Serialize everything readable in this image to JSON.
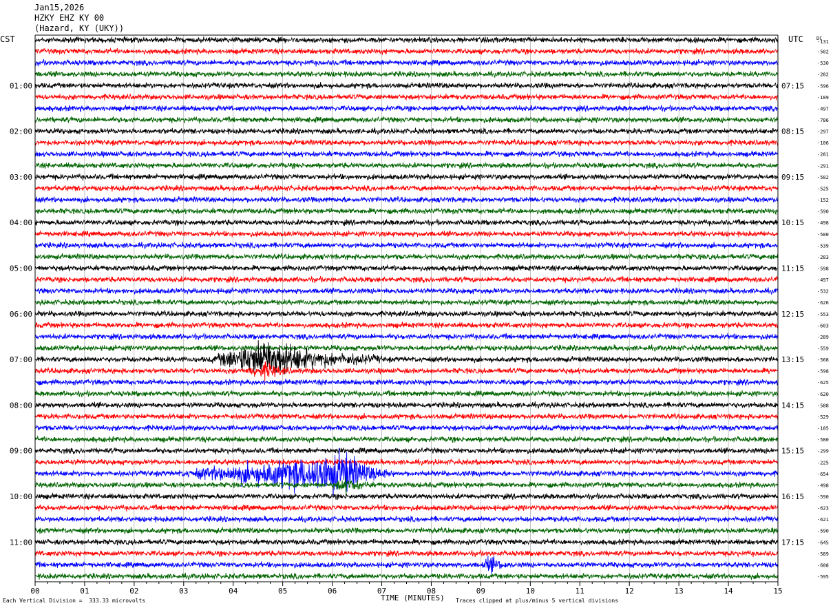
{
  "header": {
    "date": "Jan15,2026",
    "station": "HZKY EHZ KY 00",
    "location": "(Hazard, KY (UKY))"
  },
  "left_timezone": "CST",
  "right_timezone": "UTC",
  "dc_header": "DC",
  "footer": {
    "scale_note": "Each Vertical Division =  333.33 microvolts",
    "xlabel": "TIME (MINUTES)",
    "clip_note": "Traces clipped at plus/minus 5 vertical divisions"
  },
  "chart_data": {
    "type": "line",
    "title": "HZKY EHZ KY 00",
    "xlabel": "TIME (MINUTES)",
    "xlim": [
      0,
      15
    ],
    "x_ticks": [
      "00",
      "01",
      "02",
      "03",
      "04",
      "05",
      "06",
      "07",
      "08",
      "09",
      "10",
      "11",
      "12",
      "13",
      "14",
      "15"
    ],
    "trace_colors": [
      "#000000",
      "#ff0000",
      "#0000ff",
      "#006400"
    ],
    "trace_count": 48,
    "left_hour_labels": [
      "01:00",
      "02:00",
      "03:00",
      "04:00",
      "05:00",
      "06:00",
      "07:00",
      "08:00",
      "09:00",
      "10:00",
      "11:00"
    ],
    "right_hour_labels": [
      "07:15",
      "08:15",
      "09:15",
      "10:15",
      "11:15",
      "12:15",
      "13:15",
      "14:15",
      "15:15",
      "16:15",
      "17:15"
    ],
    "dc_offsets": [
      "-131",
      "-502",
      "-530",
      "-282",
      "-596",
      "-189",
      "-497",
      "-786",
      "-297",
      "-106",
      "-281",
      "-291",
      "-502",
      "-525",
      "-152",
      "-590",
      "-498",
      "-500",
      "-539",
      "-283",
      "-598",
      "-497",
      "-532",
      "-626",
      "-553",
      "-603",
      "-289",
      "-559",
      "-568",
      "-598",
      "-625",
      "-620",
      "-588",
      "-529",
      "-185",
      "-580",
      "-299",
      "-225",
      "-654",
      "-498",
      "-590",
      "-623",
      "-621",
      "-590",
      "-645",
      "-589",
      "-608",
      "-595"
    ],
    "events": [
      {
        "trace": 28,
        "start_min": 3.5,
        "peak_min": 4.7,
        "end_min": 7.0,
        "amplitude": "large"
      },
      {
        "trace": 29,
        "start_min": 4.2,
        "peak_min": 4.7,
        "end_min": 5.2,
        "amplitude": "small"
      },
      {
        "trace": 38,
        "start_min": 2.8,
        "peak_min": 6.3,
        "end_min": 7.2,
        "amplitude": "large"
      },
      {
        "trace": 39,
        "start_min": 6.0,
        "peak_min": 6.3,
        "end_min": 6.8,
        "amplitude": "small"
      },
      {
        "trace": 46,
        "start_min": 9.0,
        "peak_min": 9.2,
        "end_min": 9.6,
        "amplitude": "small"
      }
    ]
  }
}
